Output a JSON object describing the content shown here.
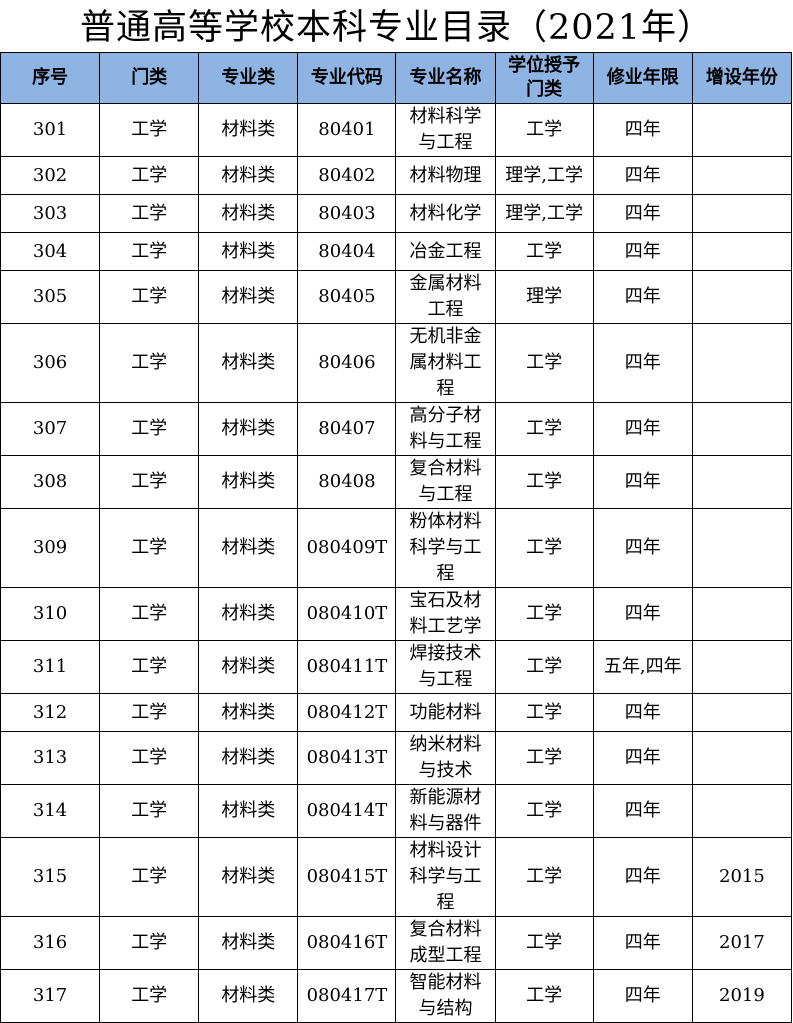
{
  "title": "普通高等学校本科专业目录（2021年）",
  "header_color": "#8db4e2",
  "columns": [
    "序号",
    "门类",
    "专业类",
    "专业代码",
    "专业名称",
    "学位授予门类",
    "修业年限",
    "增设年份"
  ],
  "rows": [
    [
      "301",
      "工学",
      "材料类",
      "80401",
      "材料科学与工程",
      "工学",
      "四年",
      ""
    ],
    [
      "302",
      "工学",
      "材料类",
      "80402",
      "材料物理",
      "理学,工学",
      "四年",
      ""
    ],
    [
      "303",
      "工学",
      "材料类",
      "80403",
      "材料化学",
      "理学,工学",
      "四年",
      ""
    ],
    [
      "304",
      "工学",
      "材料类",
      "80404",
      "冶金工程",
      "工学",
      "四年",
      ""
    ],
    [
      "305",
      "工学",
      "材料类",
      "80405",
      "金属材料工程",
      "理学",
      "四年",
      ""
    ],
    [
      "306",
      "工学",
      "材料类",
      "80406",
      "无机非金属材料工程",
      "工学",
      "四年",
      ""
    ],
    [
      "307",
      "工学",
      "材料类",
      "80407",
      "高分子材料与工程",
      "工学",
      "四年",
      ""
    ],
    [
      "308",
      "工学",
      "材料类",
      "80408",
      "复合材料与工程",
      "工学",
      "四年",
      ""
    ],
    [
      "309",
      "工学",
      "材料类",
      "080409T",
      "粉体材料科学与工程",
      "工学",
      "四年",
      ""
    ],
    [
      "310",
      "工学",
      "材料类",
      "080410T",
      "宝石及材料工艺学",
      "工学",
      "四年",
      ""
    ],
    [
      "311",
      "工学",
      "材料类",
      "080411T",
      "焊接技术与工程",
      "工学",
      "五年,四年",
      ""
    ],
    [
      "312",
      "工学",
      "材料类",
      "080412T",
      "功能材料",
      "工学",
      "四年",
      ""
    ],
    [
      "313",
      "工学",
      "材料类",
      "080413T",
      "纳米材料与技术",
      "工学",
      "四年",
      ""
    ],
    [
      "314",
      "工学",
      "材料类",
      "080414T",
      "新能源材料与器件",
      "工学",
      "四年",
      ""
    ],
    [
      "315",
      "工学",
      "材料类",
      "080415T",
      "材料设计科学与工程",
      "工学",
      "四年",
      "2015"
    ],
    [
      "316",
      "工学",
      "材料类",
      "080416T",
      "复合材料成型工程",
      "工学",
      "四年",
      "2017"
    ],
    [
      "317",
      "工学",
      "材料类",
      "080417T",
      "智能材料与结构",
      "工学",
      "四年",
      "2019"
    ]
  ]
}
